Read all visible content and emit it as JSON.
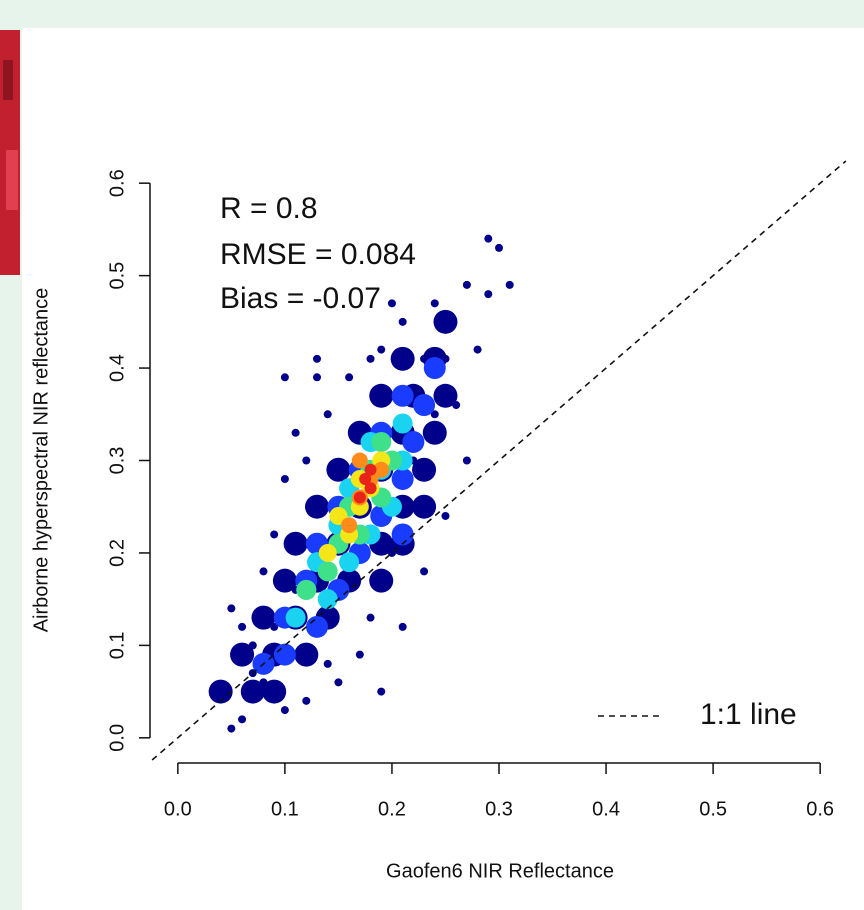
{
  "chart_data": {
    "type": "scatter",
    "xlabel": "Gaofen6 NIR Reflectance",
    "ylabel": "Airborne hyperspectral NIR reflectance",
    "annotations": [
      "R = 0.8",
      "RMSE = 0.084",
      "Bias = -0.07"
    ],
    "reference_line": {
      "label": "1:1 line",
      "color": "#111111"
    },
    "xlim": [
      -0.026,
      0.626
    ],
    "ylim": [
      -0.024,
      0.624
    ],
    "xticks": [
      {
        "value": 0,
        "label": "0.0"
      },
      0.1,
      0.2,
      0.3,
      0.4,
      0.5,
      0.6
    ],
    "yticks": [
      {
        "value": 0,
        "label": "0.0"
      },
      0.1,
      0.2,
      0.3,
      0.4,
      0.5,
      0.6
    ],
    "series": [
      {
        "color": "#00008b",
        "marker_size": 4,
        "x": [
          0.05,
          0.06,
          0.04,
          0.05,
          0.07,
          0.08,
          0.1,
          0.12,
          0.15,
          0.19,
          0.17,
          0.21,
          0.23,
          0.25,
          0.27,
          0.26,
          0.28,
          0.29,
          0.3,
          0.31,
          0.29,
          0.27,
          0.24,
          0.21,
          0.19,
          0.16,
          0.13,
          0.1,
          0.13,
          0.11,
          0.1,
          0.09,
          0.08,
          0.06,
          0.2,
          0.18,
          0.23,
          0.25,
          0.12,
          0.14,
          0.22,
          0.24,
          0.2,
          0.18,
          0.14,
          0.09,
          0.07,
          0.11
        ],
        "y": [
          0.01,
          0.02,
          0.05,
          0.14,
          0.1,
          0.06,
          0.03,
          0.04,
          0.06,
          0.05,
          0.09,
          0.12,
          0.18,
          0.24,
          0.3,
          0.36,
          0.42,
          0.48,
          0.53,
          0.49,
          0.54,
          0.49,
          0.47,
          0.45,
          0.42,
          0.39,
          0.39,
          0.39,
          0.41,
          0.33,
          0.28,
          0.22,
          0.18,
          0.12,
          0.47,
          0.41,
          0.41,
          0.41,
          0.3,
          0.35,
          0.3,
          0.35,
          0.2,
          0.13,
          0.08,
          0.12,
          0.07,
          0.16
        ]
      },
      {
        "color": "#00008b",
        "marker_size": 12,
        "x": [
          0.04,
          0.07,
          0.09,
          0.06,
          0.09,
          0.12,
          0.08,
          0.11,
          0.14,
          0.1,
          0.13,
          0.16,
          0.19,
          0.11,
          0.15,
          0.19,
          0.21,
          0.13,
          0.17,
          0.21,
          0.23,
          0.15,
          0.19,
          0.23,
          0.17,
          0.21,
          0.24,
          0.19,
          0.22,
          0.25,
          0.21,
          0.24,
          0.25
        ],
        "y": [
          0.05,
          0.05,
          0.05,
          0.09,
          0.09,
          0.09,
          0.13,
          0.13,
          0.13,
          0.17,
          0.17,
          0.17,
          0.17,
          0.21,
          0.21,
          0.21,
          0.21,
          0.25,
          0.25,
          0.25,
          0.25,
          0.29,
          0.29,
          0.29,
          0.33,
          0.33,
          0.33,
          0.37,
          0.37,
          0.37,
          0.41,
          0.41,
          0.45
        ]
      },
      {
        "color": "#1a3cff",
        "marker_size": 11,
        "x": [
          0.08,
          0.1,
          0.1,
          0.13,
          0.12,
          0.15,
          0.13,
          0.17,
          0.15,
          0.19,
          0.21,
          0.17,
          0.21,
          0.19,
          0.22,
          0.21,
          0.23,
          0.24
        ],
        "y": [
          0.08,
          0.09,
          0.13,
          0.12,
          0.17,
          0.16,
          0.21,
          0.2,
          0.25,
          0.24,
          0.22,
          0.29,
          0.28,
          0.33,
          0.32,
          0.37,
          0.36,
          0.4
        ]
      },
      {
        "color": "#19d3f0",
        "marker_size": 10,
        "x": [
          0.11,
          0.12,
          0.14,
          0.13,
          0.16,
          0.15,
          0.18,
          0.2,
          0.16,
          0.19,
          0.21,
          0.18,
          0.21
        ],
        "y": [
          0.13,
          0.16,
          0.15,
          0.19,
          0.19,
          0.23,
          0.22,
          0.25,
          0.27,
          0.29,
          0.3,
          0.32,
          0.34
        ]
      },
      {
        "color": "#3fe08a",
        "marker_size": 10,
        "x": [
          0.12,
          0.14,
          0.15,
          0.17,
          0.16,
          0.19,
          0.18,
          0.2,
          0.19
        ],
        "y": [
          0.16,
          0.18,
          0.21,
          0.22,
          0.25,
          0.26,
          0.29,
          0.3,
          0.32
        ]
      },
      {
        "color": "#f5e61a",
        "marker_size": 9,
        "x": [
          0.14,
          0.16,
          0.17,
          0.18,
          0.19,
          0.17,
          0.15
        ],
        "y": [
          0.2,
          0.22,
          0.25,
          0.27,
          0.3,
          0.28,
          0.24
        ]
      },
      {
        "color": "#ff8c1a",
        "marker_size": 8,
        "x": [
          0.16,
          0.17,
          0.18,
          0.19,
          0.17
        ],
        "y": [
          0.23,
          0.26,
          0.28,
          0.29,
          0.3
        ]
      },
      {
        "color": "#e8231a",
        "marker_size": 6,
        "x": [
          0.17,
          0.18,
          0.18,
          0.175
        ],
        "y": [
          0.26,
          0.27,
          0.29,
          0.28
        ]
      }
    ]
  }
}
